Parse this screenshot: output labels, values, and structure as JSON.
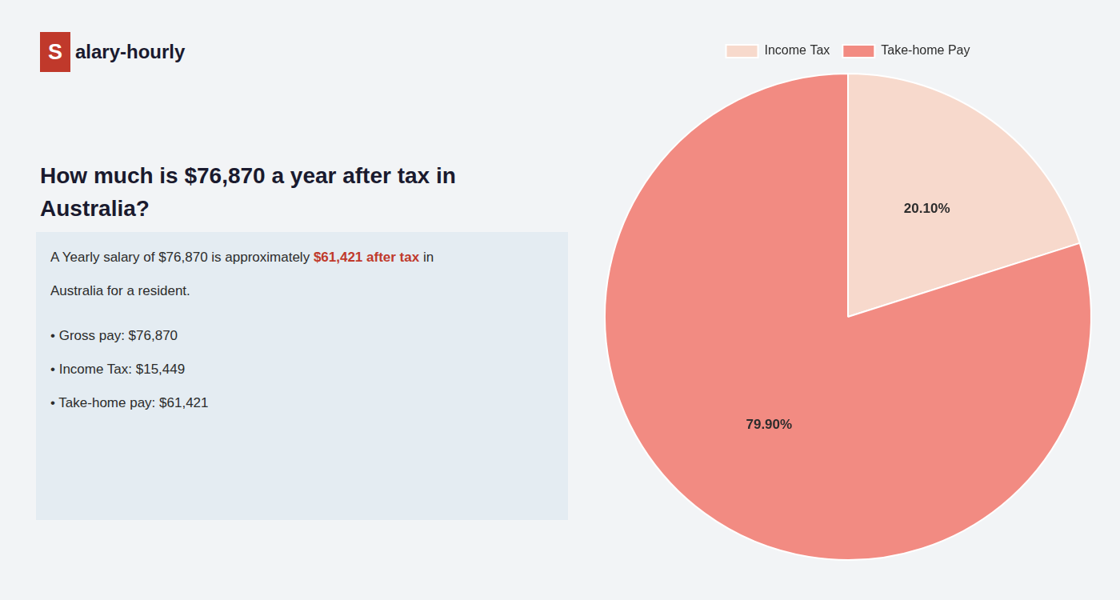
{
  "chart_data": {
    "type": "pie",
    "title": "How much is $76,870 a year after tax in\nAustralia?",
    "categories": [
      "Income Tax",
      "Take-home Pay"
    ],
    "values": [
      20.1,
      79.9
    ],
    "value_labels": [
      "20.10%",
      "79.90%"
    ],
    "colors": [
      "#f7d9cc",
      "#f28b82"
    ],
    "data_labels": true,
    "legend": "top",
    "annotations": [
      [
        {
          "text": "S",
          "color": "#c0392b"
        },
        {
          "text": "alary-hourly"
        }
      ],
      [
        {
          "text": "A Yearly salary of $76,870 is approximately "
        },
        {
          "text": "$61,421 after tax",
          "color": "#c0392b"
        },
        {
          "text": " in"
        }
      ],
      [
        {
          "text": "Australia for a resident."
        }
      ],
      [
        {
          "text": "• Gross pay: $76,870"
        }
      ],
      [
        {
          "text": "• Income Tax: $15,449"
        }
      ],
      [
        {
          "text": "• Take-home pay: $61,421"
        }
      ]
    ]
  }
}
